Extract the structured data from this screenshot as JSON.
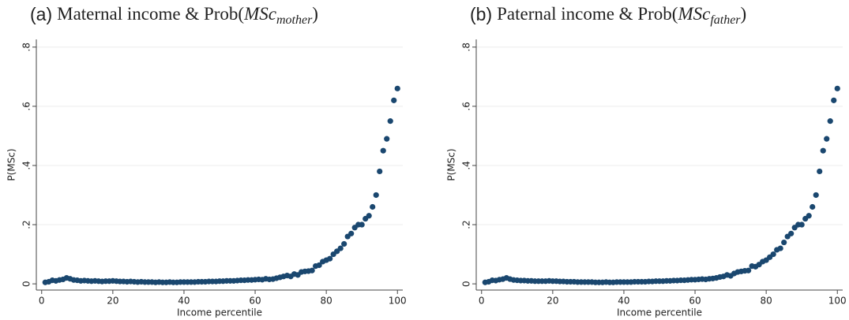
{
  "chart_data": [
    {
      "type": "scatter",
      "title": {
        "label": "(a)",
        "text": "Maternal income & Prob(",
        "math": "MSc",
        "subscript": "mother",
        "close": ")"
      },
      "x_label": "Income percentile",
      "y_label": "P(MSc)",
      "color": "#1a476f",
      "grid": true,
      "xlim": [
        -1.5,
        101.5
      ],
      "ylim": [
        -0.021,
        0.826
      ],
      "xticks": [
        0,
        20,
        40,
        60,
        80,
        100
      ],
      "yticks": [
        0,
        {
          "value": 0.2,
          "label": ".2"
        },
        {
          "value": 0.4,
          "label": ".4"
        },
        {
          "value": 0.6,
          "label": ".6"
        },
        {
          "value": 0.8,
          "label": ".8"
        }
      ],
      "x": [
        1,
        2,
        3,
        4,
        5,
        6,
        7,
        8,
        9,
        10,
        11,
        12,
        13,
        14,
        15,
        16,
        17,
        18,
        19,
        20,
        21,
        22,
        23,
        24,
        25,
        26,
        27,
        28,
        29,
        30,
        31,
        32,
        33,
        34,
        35,
        36,
        37,
        38,
        39,
        40,
        41,
        42,
        43,
        44,
        45,
        46,
        47,
        48,
        49,
        50,
        51,
        52,
        53,
        54,
        55,
        56,
        57,
        58,
        59,
        60,
        61,
        62,
        63,
        64,
        65,
        66,
        67,
        68,
        69,
        70,
        71,
        72,
        73,
        74,
        75,
        76,
        77,
        78,
        79,
        80,
        81,
        82,
        83,
        84,
        85,
        86,
        87,
        88,
        89,
        90,
        91,
        92,
        93,
        94,
        95,
        96,
        97,
        98,
        99,
        100
      ],
      "values": [
        0.005,
        0.007,
        0.012,
        0.01,
        0.013,
        0.015,
        0.02,
        0.017,
        0.013,
        0.012,
        0.01,
        0.011,
        0.01,
        0.009,
        0.01,
        0.009,
        0.008,
        0.009,
        0.009,
        0.01,
        0.009,
        0.008,
        0.008,
        0.007,
        0.008,
        0.007,
        0.006,
        0.007,
        0.006,
        0.006,
        0.006,
        0.005,
        0.006,
        0.005,
        0.005,
        0.006,
        0.005,
        0.005,
        0.006,
        0.006,
        0.006,
        0.006,
        0.006,
        0.007,
        0.007,
        0.007,
        0.008,
        0.008,
        0.008,
        0.009,
        0.009,
        0.01,
        0.01,
        0.01,
        0.011,
        0.012,
        0.012,
        0.013,
        0.013,
        0.014,
        0.015,
        0.014,
        0.017,
        0.015,
        0.016,
        0.019,
        0.022,
        0.025,
        0.028,
        0.025,
        0.033,
        0.03,
        0.04,
        0.042,
        0.043,
        0.045,
        0.06,
        0.063,
        0.075,
        0.08,
        0.085,
        0.1,
        0.11,
        0.12,
        0.135,
        0.16,
        0.17,
        0.19,
        0.2,
        0.2,
        0.22,
        0.23,
        0.26,
        0.3,
        0.38,
        0.45,
        0.49,
        0.55,
        0.62,
        0.66
      ]
    },
    {
      "type": "scatter",
      "title": {
        "label": "(b)",
        "text": "Paternal income & Prob(",
        "math": "MSc",
        "subscript": "father",
        "close": ")"
      },
      "x_label": "Income percentile",
      "y_label": "P(MSc)",
      "color": "#1a476f",
      "grid": true,
      "xlim": [
        -1.5,
        101.5
      ],
      "ylim": [
        -0.021,
        0.826
      ],
      "xticks": [
        0,
        20,
        40,
        60,
        80,
        100
      ],
      "yticks": [
        0,
        {
          "value": 0.2,
          "label": ".2"
        },
        {
          "value": 0.4,
          "label": ".4"
        },
        {
          "value": 0.6,
          "label": ".6"
        },
        {
          "value": 0.8,
          "label": ".8"
        }
      ],
      "x": [
        1,
        2,
        3,
        4,
        5,
        6,
        7,
        8,
        9,
        10,
        11,
        12,
        13,
        14,
        15,
        16,
        17,
        18,
        19,
        20,
        21,
        22,
        23,
        24,
        25,
        26,
        27,
        28,
        29,
        30,
        31,
        32,
        33,
        34,
        35,
        36,
        37,
        38,
        39,
        40,
        41,
        42,
        43,
        44,
        45,
        46,
        47,
        48,
        49,
        50,
        51,
        52,
        53,
        54,
        55,
        56,
        57,
        58,
        59,
        60,
        61,
        62,
        63,
        64,
        65,
        66,
        67,
        68,
        69,
        70,
        71,
        72,
        73,
        74,
        75,
        76,
        77,
        78,
        79,
        80,
        81,
        82,
        83,
        84,
        85,
        86,
        87,
        88,
        89,
        90,
        91,
        92,
        93,
        94,
        95,
        96,
        97,
        98,
        99,
        100
      ],
      "values": [
        0.005,
        0.007,
        0.012,
        0.011,
        0.014,
        0.016,
        0.02,
        0.016,
        0.013,
        0.012,
        0.011,
        0.011,
        0.01,
        0.01,
        0.009,
        0.009,
        0.009,
        0.009,
        0.01,
        0.009,
        0.009,
        0.008,
        0.008,
        0.007,
        0.007,
        0.007,
        0.006,
        0.006,
        0.006,
        0.006,
        0.006,
        0.005,
        0.005,
        0.005,
        0.006,
        0.005,
        0.005,
        0.006,
        0.006,
        0.006,
        0.006,
        0.006,
        0.007,
        0.007,
        0.007,
        0.007,
        0.008,
        0.008,
        0.009,
        0.009,
        0.009,
        0.01,
        0.01,
        0.011,
        0.011,
        0.012,
        0.012,
        0.013,
        0.014,
        0.014,
        0.015,
        0.016,
        0.015,
        0.017,
        0.018,
        0.02,
        0.023,
        0.025,
        0.03,
        0.027,
        0.035,
        0.04,
        0.042,
        0.044,
        0.045,
        0.06,
        0.058,
        0.065,
        0.075,
        0.08,
        0.09,
        0.1,
        0.115,
        0.12,
        0.14,
        0.16,
        0.17,
        0.19,
        0.2,
        0.2,
        0.22,
        0.23,
        0.26,
        0.3,
        0.38,
        0.45,
        0.49,
        0.55,
        0.62,
        0.66
      ]
    }
  ]
}
